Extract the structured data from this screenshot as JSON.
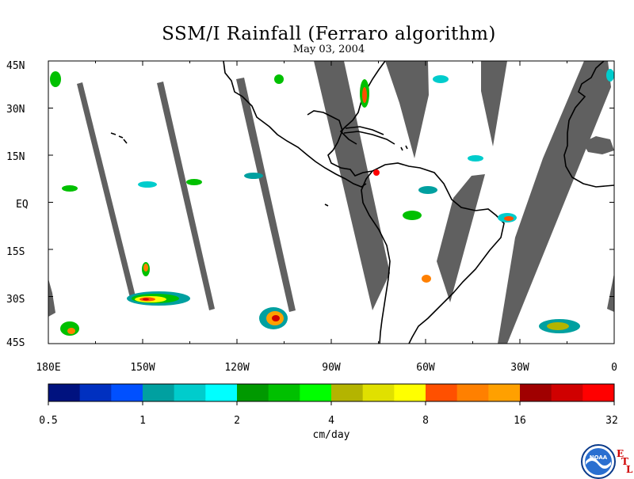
{
  "title": "SSM/I Rainfall (Ferraro algorithm)",
  "date": "May 03, 2004",
  "map": {
    "lat_labels": [
      "45N",
      "30N",
      "15N",
      "EQ",
      "15S",
      "30S",
      "45S"
    ],
    "lon_labels": [
      "180E",
      "150W",
      "120W",
      "90W",
      "60W",
      "30W",
      "0"
    ],
    "land_color": "#ffffff",
    "no_data_color": "#606060",
    "coastline_color": "#000000"
  },
  "colorbar": {
    "unit": "cm/day",
    "colors": [
      "#00127f",
      "#0030c0",
      "#0050ff",
      "#00a0a0",
      "#00cccc",
      "#00ffff",
      "#009900",
      "#00c000",
      "#00ff00",
      "#b4b400",
      "#e0e000",
      "#ffff00",
      "#ff5000",
      "#ff8000",
      "#ffa000",
      "#a00000",
      "#d00000",
      "#ff0000"
    ],
    "tick_labels": [
      "0.5",
      "1",
      "2",
      "4",
      "8",
      "16",
      "32"
    ]
  },
  "logo": {
    "name": "NOAA",
    "mark_lines": [
      "E",
      "T",
      "L"
    ]
  }
}
